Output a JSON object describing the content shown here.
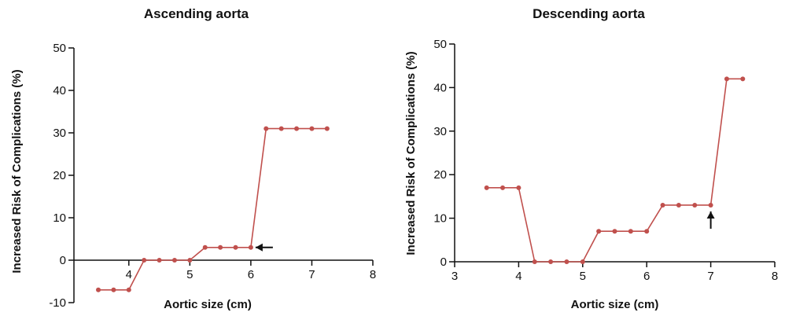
{
  "chart_data": [
    {
      "type": "line",
      "title": "Ascending aorta",
      "xlabel": "Aortic size (cm)",
      "ylabel": "Increased Risk of Complications (%)",
      "xlim": [
        3.1,
        8
      ],
      "ylim": [
        -10,
        50
      ],
      "xticks": [
        4,
        5,
        6,
        7,
        8
      ],
      "yticks": [
        -10,
        0,
        10,
        20,
        30,
        40,
        50
      ],
      "x_axis_at_y": 0,
      "grid": false,
      "line_color": "#c0504d",
      "series": [
        {
          "x": [
            3.5,
            3.75,
            4.0,
            4.25,
            4.5,
            4.75,
            5.0,
            5.25,
            5.5,
            5.75,
            6.0,
            6.25,
            6.5,
            6.75,
            7.0,
            7.25
          ],
          "y": [
            -7,
            -7,
            -7,
            0,
            0,
            0,
            0,
            3,
            3,
            3,
            3,
            31,
            31,
            31,
            31,
            31
          ]
        }
      ],
      "arrow": {
        "x": 6.0,
        "y": 3,
        "direction": "left"
      }
    },
    {
      "type": "line",
      "title": "Descending aorta",
      "xlabel": "Aortic size (cm)",
      "ylabel": "Increased Risk of Complications (%)",
      "xlim": [
        3,
        8
      ],
      "ylim": [
        0,
        50
      ],
      "xticks": [
        3,
        4,
        5,
        6,
        7,
        8
      ],
      "yticks": [
        0,
        10,
        20,
        30,
        40,
        50
      ],
      "x_axis_at_y": 0,
      "grid": false,
      "line_color": "#c0504d",
      "series": [
        {
          "x": [
            3.5,
            3.75,
            4.0,
            4.25,
            4.5,
            4.75,
            5.0,
            5.25,
            5.5,
            5.75,
            6.0,
            6.25,
            6.5,
            6.75,
            7.0,
            7.25,
            7.5
          ],
          "y": [
            17,
            17,
            17,
            0,
            0,
            0,
            0,
            7,
            7,
            7,
            7,
            13,
            13,
            13,
            13,
            42,
            42
          ]
        }
      ],
      "arrow": {
        "x": 7.0,
        "y": 13,
        "direction": "up"
      }
    }
  ]
}
